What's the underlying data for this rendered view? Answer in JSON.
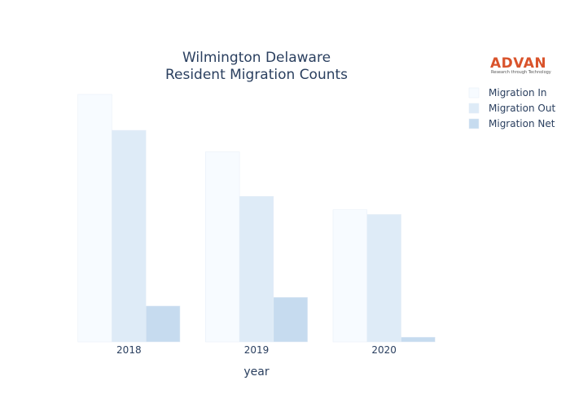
{
  "chart_data": {
    "type": "bar",
    "title_lines": [
      "Wilmington Delaware",
      "Resident Migration Counts"
    ],
    "xlabel": "year",
    "ylabel": "",
    "categories": [
      "2018",
      "2019",
      "2020"
    ],
    "series": [
      {
        "name": "Migration In",
        "values": [
          1000,
          768,
          534
        ],
        "color": "#f7fbff"
      },
      {
        "name": "Migration Out",
        "values": [
          855,
          588,
          515
        ],
        "color": "#deebf7"
      },
      {
        "name": "Migration Net",
        "values": [
          145,
          180,
          19
        ],
        "color": "#c6dbef"
      }
    ],
    "ylim": [
      0,
      1000
    ],
    "grid": false,
    "legend_position": "top-right"
  },
  "logo": {
    "name": "ADVAN",
    "tagline": "Research through Technology"
  }
}
